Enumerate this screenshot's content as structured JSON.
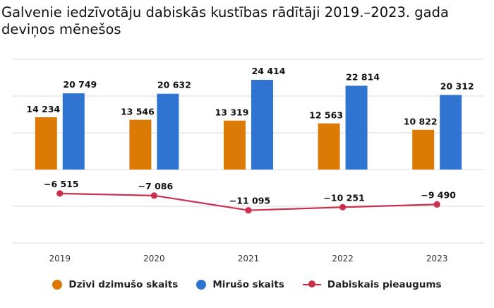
{
  "title": "Galvenie iedzīvotāju dabiskās kustības rādītāji 2019.–2023. gada deviņos mēnešos",
  "chart_data": {
    "type": "bar",
    "title": "Galvenie iedzīvotāju dabiskās kustības rādītāji 2019.–2023. gada deviņos mēnešos",
    "xlabel": "",
    "ylabel": "",
    "categories": [
      "2019",
      "2020",
      "2021",
      "2022",
      "2023"
    ],
    "series": [
      {
        "name": "Dzīvi dzimušo skaits",
        "type": "bar",
        "color": "#DB7B06",
        "values": [
          14234,
          13546,
          13319,
          12563,
          10822
        ],
        "labels": [
          "14 234",
          "13 546",
          "13 319",
          "12 563",
          "10 822"
        ]
      },
      {
        "name": "Mirušo skaits",
        "type": "bar",
        "color": "#2F74D0",
        "values": [
          20749,
          20632,
          24414,
          22814,
          20312
        ],
        "labels": [
          "20 749",
          "20 632",
          "24 414",
          "22 814",
          "20 312"
        ]
      },
      {
        "name": "Dabiskais pieaugums",
        "type": "line",
        "color": "#C8304E",
        "values": [
          -6515,
          -7086,
          -11095,
          -10251,
          -9490
        ],
        "labels": [
          "−6 515",
          "−7 086",
          "−11 095",
          "−10 251",
          "−9 490"
        ]
      }
    ],
    "ylim": [
      -20000,
      30000
    ],
    "grid": true,
    "legend": "bottom"
  }
}
